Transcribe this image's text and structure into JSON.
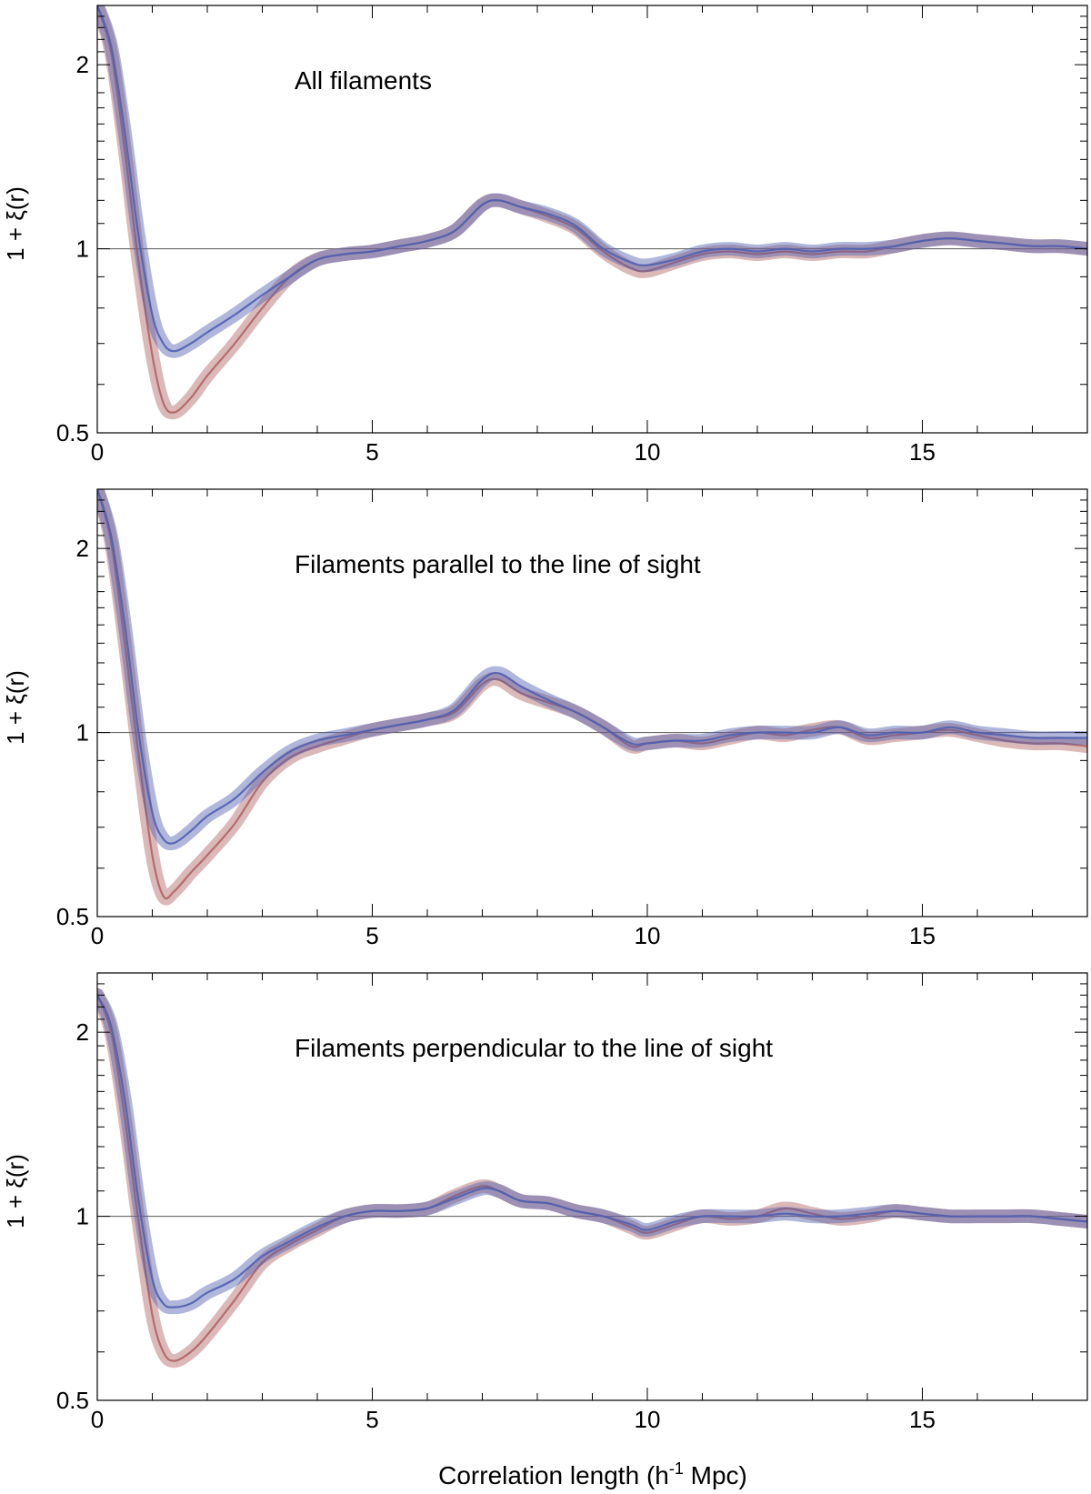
{
  "chart_data": {
    "type": "line",
    "xlabel_prefix": "Correlation length (h",
    "xlabel_sup": "-1",
    "xlabel_suffix": " Mpc)",
    "ylabel": "1 + ξ(r)",
    "x_ticks": [
      "0",
      "5",
      "10",
      "15"
    ],
    "y_ticks": [
      "0.5",
      "1",
      "2"
    ],
    "xlim": [
      0,
      18
    ],
    "ylim": [
      0.5,
      2.5
    ],
    "yscale": "log",
    "reference_line_y": 1,
    "series_colors": {
      "red": "#b06464",
      "blue": "#5060b0"
    },
    "panels": [
      {
        "title": "All filaments",
        "series": [
          {
            "color": "red",
            "x": [
              0,
              0.25,
              0.5,
              0.75,
              1.0,
              1.2,
              1.4,
              1.7,
              2.0,
              2.5,
              3.0,
              3.5,
              4.0,
              4.5,
              5.0,
              5.5,
              6.0,
              6.5,
              7.0,
              7.3,
              7.7,
              8.2,
              8.7,
              9.2,
              9.7,
              10.0,
              10.5,
              11.0,
              11.5,
              12.0,
              12.5,
              13.0,
              13.5,
              14.0,
              14.5,
              15.0,
              15.5,
              16.0,
              16.5,
              17.0,
              17.5,
              18.0
            ],
            "y": [
              2.5,
              2.1,
              1.45,
              0.95,
              0.67,
              0.56,
              0.54,
              0.57,
              0.62,
              0.7,
              0.8,
              0.9,
              0.96,
              0.98,
              0.99,
              1.01,
              1.03,
              1.07,
              1.18,
              1.2,
              1.17,
              1.13,
              1.08,
              0.99,
              0.93,
              0.92,
              0.95,
              0.98,
              0.99,
              0.98,
              0.99,
              0.98,
              0.99,
              0.99,
              1.01,
              1.03,
              1.04,
              1.03,
              1.02,
              1.01,
              1.01,
              1.0
            ]
          },
          {
            "color": "blue",
            "x": [
              0,
              0.25,
              0.5,
              0.75,
              1.0,
              1.2,
              1.4,
              1.7,
              2.0,
              2.5,
              3.0,
              3.5,
              4.0,
              4.5,
              5.0,
              5.5,
              6.0,
              6.5,
              7.0,
              7.3,
              7.7,
              8.2,
              8.7,
              9.2,
              9.7,
              10.0,
              10.5,
              11.0,
              11.5,
              12.0,
              12.5,
              13.0,
              13.5,
              14.0,
              14.5,
              15.0,
              15.5,
              16.0,
              16.5,
              17.0,
              17.5,
              18.0
            ],
            "y": [
              2.5,
              2.15,
              1.55,
              1.05,
              0.78,
              0.7,
              0.68,
              0.7,
              0.73,
              0.78,
              0.84,
              0.9,
              0.96,
              0.98,
              0.99,
              1.01,
              1.03,
              1.07,
              1.18,
              1.2,
              1.17,
              1.14,
              1.09,
              1.0,
              0.95,
              0.94,
              0.96,
              0.99,
              1.0,
              0.99,
              1.0,
              0.99,
              1.0,
              1.0,
              1.01,
              1.03,
              1.04,
              1.03,
              1.02,
              1.01,
              1.01,
              1.0
            ]
          }
        ]
      },
      {
        "title": "Filaments parallel to the line of sight",
        "series": [
          {
            "color": "red",
            "x": [
              0,
              0.25,
              0.5,
              0.75,
              1.0,
              1.2,
              1.4,
              1.7,
              2.0,
              2.5,
              3.0,
              3.5,
              4.0,
              4.5,
              5.0,
              5.5,
              6.0,
              6.5,
              7.0,
              7.3,
              7.7,
              8.2,
              8.7,
              9.2,
              9.7,
              10.0,
              10.5,
              11.0,
              11.5,
              12.0,
              12.5,
              13.0,
              13.5,
              14.0,
              14.5,
              15.0,
              15.5,
              16.0,
              16.5,
              17.0,
              17.5,
              18.0
            ],
            "y": [
              2.5,
              2.05,
              1.4,
              0.92,
              0.63,
              0.54,
              0.55,
              0.59,
              0.63,
              0.71,
              0.83,
              0.91,
              0.95,
              0.98,
              1.01,
              1.03,
              1.05,
              1.08,
              1.2,
              1.22,
              1.16,
              1.12,
              1.08,
              1.02,
              0.95,
              0.96,
              0.97,
              0.96,
              0.98,
              1.0,
              0.99,
              1.01,
              1.02,
              0.98,
              0.99,
              1.0,
              1.01,
              0.99,
              0.97,
              0.96,
              0.96,
              0.95
            ]
          },
          {
            "color": "blue",
            "x": [
              0,
              0.25,
              0.5,
              0.75,
              1.0,
              1.2,
              1.4,
              1.7,
              2.0,
              2.5,
              3.0,
              3.5,
              4.0,
              4.5,
              5.0,
              5.5,
              6.0,
              6.5,
              7.0,
              7.3,
              7.7,
              8.2,
              8.7,
              9.2,
              9.7,
              10.0,
              10.5,
              11.0,
              11.5,
              12.0,
              12.5,
              13.0,
              13.5,
              14.0,
              14.5,
              15.0,
              15.5,
              16.0,
              16.5,
              17.0,
              17.5,
              18.0
            ],
            "y": [
              2.5,
              2.1,
              1.5,
              1.0,
              0.74,
              0.67,
              0.66,
              0.69,
              0.73,
              0.78,
              0.86,
              0.93,
              0.97,
              0.99,
              1.01,
              1.03,
              1.05,
              1.09,
              1.22,
              1.25,
              1.19,
              1.13,
              1.08,
              1.02,
              0.96,
              0.96,
              0.97,
              0.97,
              0.99,
              1.0,
              1.0,
              1.0,
              1.02,
              0.99,
              1.0,
              1.0,
              1.02,
              1.0,
              0.99,
              0.98,
              0.98,
              0.98
            ]
          }
        ]
      },
      {
        "title": "Filaments perpendicular to the line of sight",
        "series": [
          {
            "color": "red",
            "x": [
              0,
              0.25,
              0.5,
              0.75,
              1.0,
              1.2,
              1.4,
              1.7,
              2.0,
              2.5,
              3.0,
              3.5,
              4.0,
              4.5,
              5.0,
              5.5,
              6.0,
              6.5,
              7.0,
              7.3,
              7.7,
              8.2,
              8.7,
              9.2,
              9.7,
              10.0,
              10.5,
              11.0,
              11.5,
              12.0,
              12.5,
              13.0,
              13.5,
              14.0,
              14.5,
              15.0,
              15.5,
              16.0,
              16.5,
              17.0,
              17.5,
              18.0
            ],
            "y": [
              2.3,
              2.0,
              1.45,
              0.98,
              0.69,
              0.6,
              0.58,
              0.6,
              0.64,
              0.73,
              0.84,
              0.9,
              0.95,
              1.0,
              1.02,
              1.02,
              1.03,
              1.08,
              1.12,
              1.1,
              1.06,
              1.05,
              1.02,
              1.0,
              0.96,
              0.94,
              0.97,
              1.0,
              0.99,
              1.0,
              1.03,
              1.01,
              0.99,
              1.0,
              1.02,
              1.01,
              1.0,
              1.0,
              1.0,
              1.0,
              0.99,
              0.98
            ]
          },
          {
            "color": "blue",
            "x": [
              0,
              0.25,
              0.5,
              0.75,
              1.0,
              1.2,
              1.4,
              1.7,
              2.0,
              2.5,
              3.0,
              3.5,
              4.0,
              4.5,
              5.0,
              5.5,
              6.0,
              6.5,
              7.0,
              7.3,
              7.7,
              8.2,
              8.7,
              9.2,
              9.7,
              10.0,
              10.5,
              11.0,
              11.5,
              12.0,
              12.5,
              13.0,
              13.5,
              14.0,
              14.5,
              15.0,
              15.5,
              16.0,
              16.5,
              17.0,
              17.5,
              18.0
            ],
            "y": [
              2.3,
              2.05,
              1.55,
              1.06,
              0.79,
              0.72,
              0.71,
              0.72,
              0.75,
              0.79,
              0.86,
              0.91,
              0.96,
              1.0,
              1.02,
              1.02,
              1.03,
              1.07,
              1.11,
              1.1,
              1.06,
              1.05,
              1.02,
              1.0,
              0.97,
              0.95,
              0.98,
              1.0,
              1.0,
              1.0,
              1.01,
              1.0,
              1.0,
              1.01,
              1.02,
              1.01,
              1.0,
              1.0,
              1.0,
              1.0,
              0.99,
              0.98
            ]
          }
        ]
      }
    ]
  }
}
